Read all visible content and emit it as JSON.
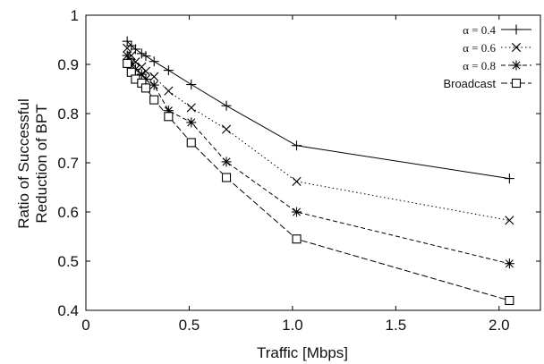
{
  "chart_data": {
    "type": "line",
    "title": "",
    "xlabel": "Traffic [Mbps]",
    "ylabel_lines": [
      "Ratio of Successful",
      "Reduction of BPT"
    ],
    "xlim": [
      0,
      2.2
    ],
    "ylim": [
      0.4,
      1.0
    ],
    "xticks": [
      0,
      0.5,
      1.0,
      1.5,
      2.0
    ],
    "xtick_labels": [
      "0",
      "0.5",
      "1.0",
      "1.5",
      "2.0"
    ],
    "yticks": [
      0.4,
      0.5,
      0.6,
      0.7,
      0.8,
      0.9,
      1.0
    ],
    "ytick_labels": [
      "0.4",
      "0.5",
      "0.6",
      "0.7",
      "0.8",
      "0.9",
      "1"
    ],
    "grid": false,
    "legend_position": "top-right",
    "series": [
      {
        "name": "α = 0.4",
        "marker": "plus",
        "line_style": "solid",
        "x": [
          0.2,
          0.22,
          0.24,
          0.27,
          0.29,
          0.33,
          0.4,
          0.51,
          0.68,
          1.02,
          2.05
        ],
        "y": [
          0.947,
          0.938,
          0.931,
          0.922,
          0.917,
          0.906,
          0.888,
          0.859,
          0.816,
          0.735,
          0.668
        ]
      },
      {
        "name": "α = 0.6",
        "marker": "x",
        "line_style": "dotted",
        "x": [
          0.2,
          0.22,
          0.24,
          0.27,
          0.29,
          0.33,
          0.4,
          0.51,
          0.68,
          1.02,
          2.05
        ],
        "y": [
          0.933,
          0.918,
          0.905,
          0.895,
          0.886,
          0.875,
          0.846,
          0.812,
          0.768,
          0.662,
          0.583
        ]
      },
      {
        "name": "α = 0.8",
        "marker": "asterisk",
        "line_style": "dashed",
        "x": [
          0.2,
          0.22,
          0.24,
          0.27,
          0.29,
          0.33,
          0.4,
          0.51,
          0.68,
          1.02,
          2.05
        ],
        "y": [
          0.918,
          0.903,
          0.89,
          0.88,
          0.87,
          0.858,
          0.806,
          0.782,
          0.702,
          0.6,
          0.495
        ]
      },
      {
        "name": "Broadcast",
        "marker": "square",
        "line_style": "long-dash",
        "x": [
          0.2,
          0.22,
          0.24,
          0.27,
          0.29,
          0.33,
          0.4,
          0.51,
          0.68,
          1.02,
          2.05
        ],
        "y": [
          0.902,
          0.884,
          0.87,
          0.862,
          0.852,
          0.828,
          0.794,
          0.741,
          0.67,
          0.545,
          0.42
        ]
      }
    ]
  }
}
